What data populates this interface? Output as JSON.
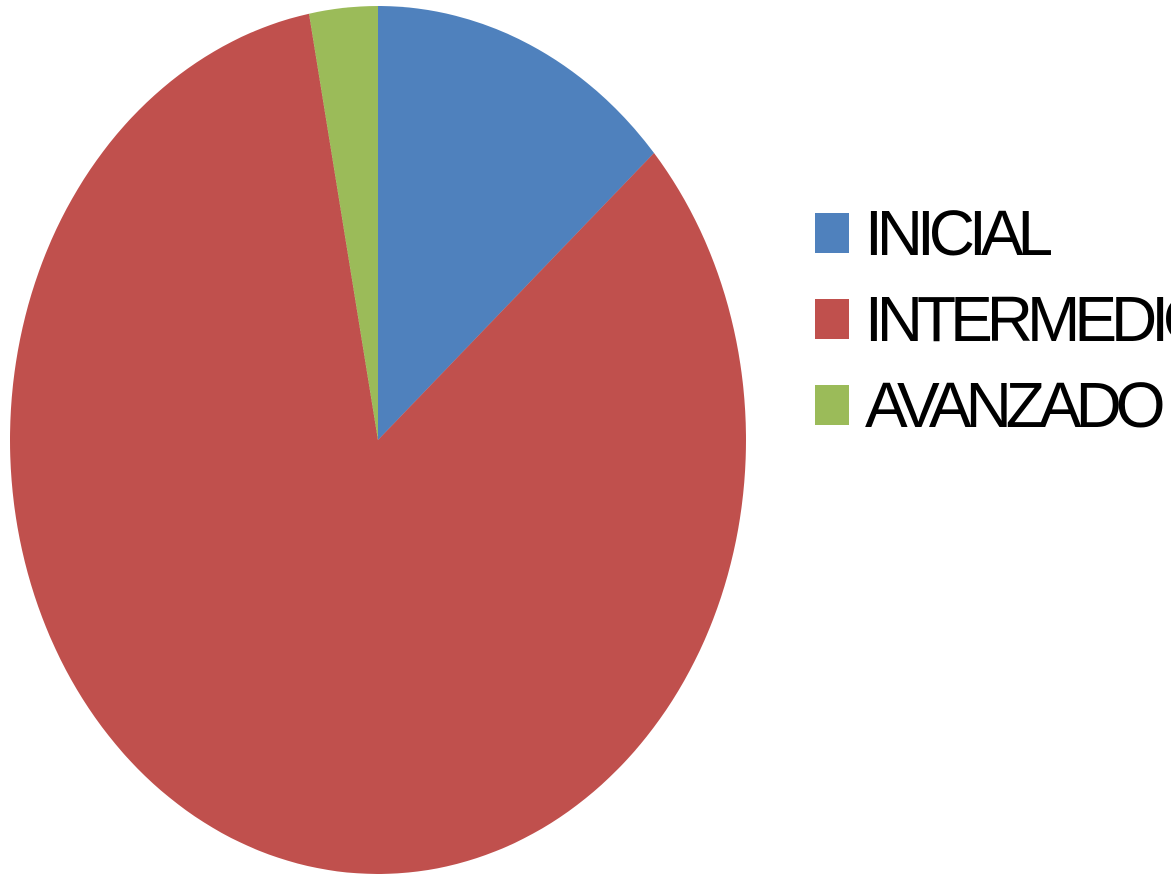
{
  "chart_data": {
    "type": "pie",
    "title": "",
    "categories": [
      "INICIAL",
      "INTERMEDIO",
      "AVANZADO"
    ],
    "values": [
      13.5,
      83.5,
      3.0
    ],
    "unit": "%",
    "colors": [
      "#4F81BD",
      "#C0504D",
      "#9BBB59"
    ],
    "start_angle_deg": 0,
    "direction": "clockwise",
    "legend": {
      "position": "right",
      "items": [
        {
          "label": "INICIAL",
          "color": "#4F81BD"
        },
        {
          "label": "INTERMEDIO",
          "color": "#C0504D"
        },
        {
          "label": "AVANZADO",
          "color": "#9BBB59"
        }
      ]
    }
  }
}
